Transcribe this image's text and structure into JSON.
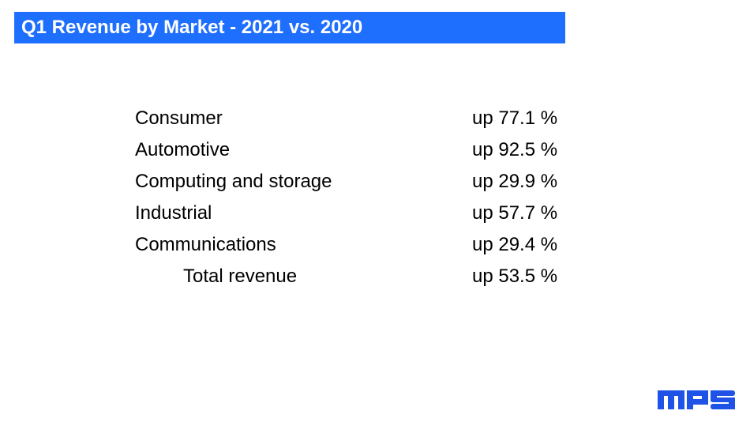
{
  "title": "Q1 Revenue by Market - 2021 vs. 2020",
  "markets": [
    {
      "name": "Consumer",
      "change": "up 77.1 %"
    },
    {
      "name": "Automotive",
      "change": "up 92.5 %"
    },
    {
      "name": "Computing and storage",
      "change": "up 29.9 %"
    },
    {
      "name": "Industrial",
      "change": "up 57.7 %"
    },
    {
      "name": "Communications",
      "change": "up 29.4 %"
    }
  ],
  "total": {
    "name": "Total revenue",
    "change": "up 53.5 %"
  },
  "logo": {
    "text": "MPS",
    "icon": "mps-logo"
  },
  "colors": {
    "title_bar": "#1f6fff",
    "title_text": "#ffffff",
    "logo": "#1f52e6",
    "body_text": "#000000"
  }
}
